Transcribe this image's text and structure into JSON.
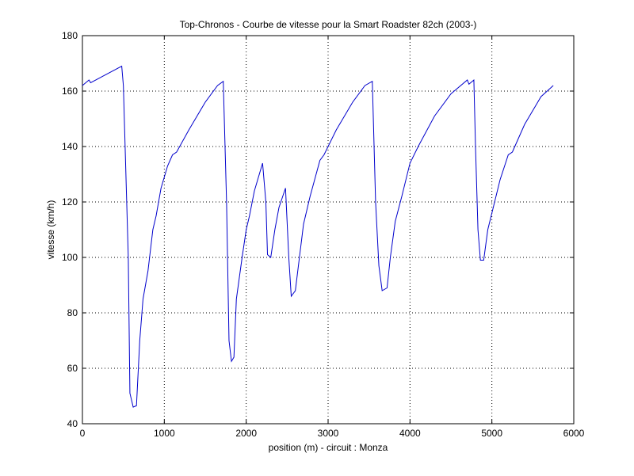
{
  "chart_data": {
    "type": "line",
    "title": "Top-Chronos - Courbe de vitesse pour la Smart Roadster 82ch (2003-)",
    "x_label": "position (m) - circuit : Monza",
    "y_label": "vitesse (km/h)",
    "x": [
      0,
      80,
      100,
      480,
      500,
      560,
      580,
      620,
      660,
      700,
      740,
      800,
      860,
      900,
      960,
      1040,
      1100,
      1150,
      1300,
      1500,
      1650,
      1720,
      1760,
      1790,
      1820,
      1850,
      1880,
      1950,
      2000,
      2040,
      2100,
      2200,
      2240,
      2260,
      2300,
      2350,
      2400,
      2480,
      2520,
      2550,
      2600,
      2650,
      2700,
      2780,
      2900,
      2950,
      3100,
      3300,
      3450,
      3540,
      3580,
      3620,
      3660,
      3720,
      3760,
      3820,
      3900,
      4000,
      4100,
      4300,
      4500,
      4700,
      4720,
      4780,
      4800,
      4830,
      4860,
      4900,
      4950,
      5000,
      5100,
      5200,
      5250,
      5400,
      5600,
      5750
    ],
    "series": [
      {
        "name": "vitesse",
        "color": "#0000cc",
        "values": [
          162,
          164,
          163,
          169,
          162,
          100,
          51,
          46,
          46.5,
          70,
          85,
          95,
          110,
          115,
          125,
          133,
          137,
          138,
          146,
          156,
          162,
          163.5,
          120,
          70,
          62.5,
          64,
          85,
          100,
          110,
          115,
          124,
          134,
          120,
          101,
          100,
          110,
          118,
          125,
          100,
          86,
          88,
          100,
          112,
          122,
          135,
          137,
          146,
          156,
          162,
          163.5,
          120,
          97,
          88,
          89,
          100,
          113,
          122,
          134,
          140,
          151,
          159,
          164,
          162.5,
          164,
          140,
          110,
          99,
          99,
          110,
          116,
          128,
          137,
          138,
          148,
          158,
          162
        ]
      }
    ],
    "xlim": [
      0,
      6000
    ],
    "xticks": [
      0,
      1000,
      2000,
      3000,
      4000,
      5000,
      6000
    ],
    "ylim": [
      40,
      180
    ],
    "yticks": [
      40,
      60,
      80,
      100,
      120,
      140,
      160,
      180
    ],
    "grid": true
  }
}
